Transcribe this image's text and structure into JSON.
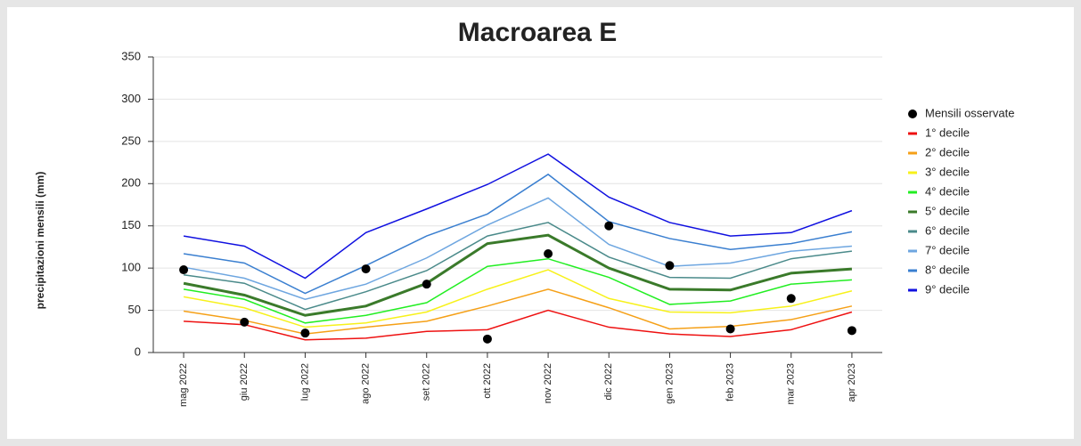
{
  "chart_data": {
    "type": "line",
    "title": "Macroarea E",
    "y_label": "precipitazioni mensili (mm)",
    "categories": [
      "mag 2022",
      "giu 2022",
      "lug 2022",
      "ago 2022",
      "set 2022",
      "ott 2022",
      "nov 2022",
      "dic 2022",
      "gen 2023",
      "feb 2023",
      "mar 2023",
      "apr 2023"
    ],
    "ylim": [
      0,
      350
    ],
    "yticks": [
      0,
      50,
      100,
      150,
      200,
      250,
      300,
      350
    ],
    "grid": true,
    "legend": "right",
    "observed": {
      "name": "Mensili osservate",
      "color": "#000000",
      "values": [
        98,
        36,
        23,
        99,
        81,
        16,
        117,
        150,
        103,
        28,
        64,
        26
      ]
    },
    "series": [
      {
        "name": "1° decile",
        "color": "#ee1111",
        "line_width": 1.5,
        "values": [
          37,
          33,
          15,
          17,
          25,
          27,
          50,
          30,
          22,
          19,
          27,
          48
        ]
      },
      {
        "name": "2° decile",
        "color": "#f5a017",
        "line_width": 1.5,
        "values": [
          49,
          38,
          22,
          30,
          37,
          55,
          75,
          53,
          28,
          31,
          39,
          55
        ]
      },
      {
        "name": "3° decile",
        "color": "#f7f11a",
        "line_width": 1.5,
        "values": [
          66,
          53,
          30,
          35,
          48,
          75,
          98,
          64,
          48,
          47,
          55,
          73
        ]
      },
      {
        "name": "4° decile",
        "color": "#22ee22",
        "line_width": 1.5,
        "values": [
          75,
          63,
          35,
          44,
          59,
          102,
          111,
          89,
          57,
          61,
          81,
          86
        ]
      },
      {
        "name": "5° decile",
        "color": "#3a7a2a",
        "line_width": 3,
        "values": [
          82,
          68,
          44,
          55,
          82,
          129,
          139,
          100,
          75,
          74,
          94,
          99
        ]
      },
      {
        "name": "6° decile",
        "color": "#4a8a8a",
        "line_width": 1.5,
        "values": [
          92,
          82,
          51,
          72,
          97,
          138,
          154,
          113,
          89,
          88,
          111,
          120
        ]
      },
      {
        "name": "7° decile",
        "color": "#6ea6e0",
        "line_width": 1.5,
        "values": [
          101,
          88,
          63,
          81,
          112,
          151,
          183,
          128,
          102,
          106,
          120,
          126
        ]
      },
      {
        "name": "8° decile",
        "color": "#3a7fd0",
        "line_width": 1.5,
        "values": [
          117,
          106,
          70,
          103,
          138,
          164,
          211,
          155,
          135,
          122,
          129,
          143
        ]
      },
      {
        "name": "9° decile",
        "color": "#1010e0",
        "line_width": 1.5,
        "values": [
          138,
          126,
          88,
          142,
          170,
          199,
          235,
          184,
          154,
          138,
          142,
          168
        ]
      }
    ]
  }
}
